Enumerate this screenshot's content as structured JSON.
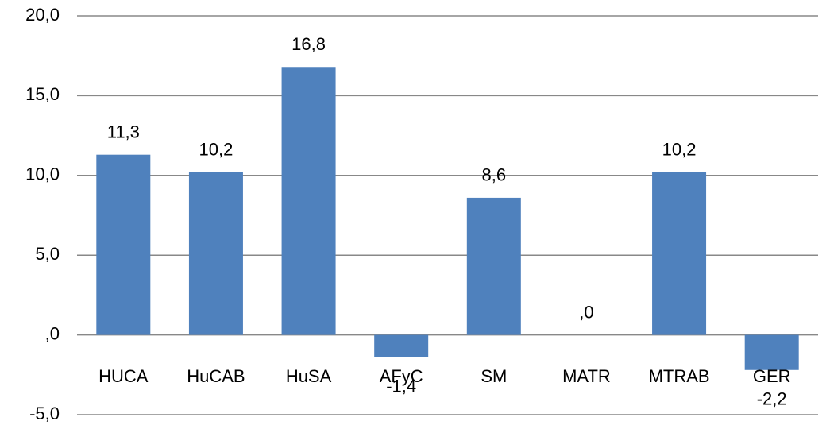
{
  "chart_data": {
    "type": "bar",
    "categories": [
      "HUCA",
      "HuCAB",
      "HuSA",
      "AFyC",
      "SM",
      "MATR",
      "MTRAB",
      "GER"
    ],
    "values": [
      11.3,
      10.2,
      16.8,
      -1.4,
      8.6,
      0,
      10.2,
      -2.2
    ],
    "value_labels": [
      "11,3",
      "10,2",
      "16,8",
      "-1,4",
      "8,6",
      ",0",
      "10,2",
      "-2,2"
    ],
    "color": "#4f81bd",
    "ylim": [
      -5,
      20
    ],
    "yticks": [
      {
        "value": -5,
        "label": "-5,0"
      },
      {
        "value": 0,
        "label": ",0"
      },
      {
        "value": 5,
        "label": "5,0"
      },
      {
        "value": 10,
        "label": "10,0"
      },
      {
        "value": 15,
        "label": "15,0"
      },
      {
        "value": 20,
        "label": "20,0"
      }
    ],
    "grid": true
  }
}
